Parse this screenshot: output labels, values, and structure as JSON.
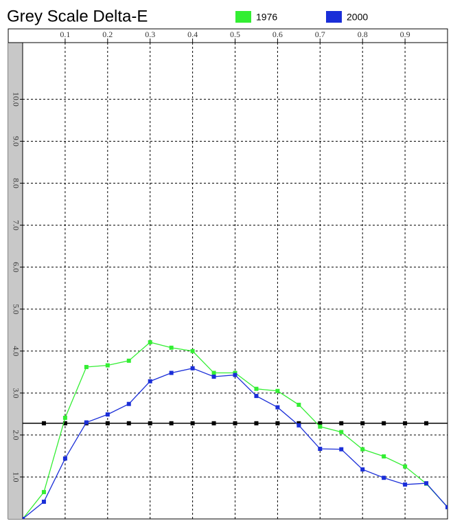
{
  "chart_data": {
    "type": "line",
    "title": "Grey Scale Delta-E",
    "x": [
      0,
      0.05,
      0.1,
      0.15,
      0.2,
      0.25,
      0.3,
      0.35,
      0.4,
      0.45,
      0.5,
      0.55,
      0.6,
      0.65,
      0.7,
      0.75,
      0.8,
      0.85,
      0.9,
      0.95,
      1.0
    ],
    "series": [
      {
        "name": "1976",
        "color": "#33ee33",
        "values": [
          0,
          0.64,
          2.41,
          3.62,
          3.66,
          3.77,
          4.21,
          4.08,
          4.0,
          3.48,
          3.48,
          3.1,
          3.05,
          2.72,
          2.2,
          2.07,
          1.66,
          1.49,
          1.25,
          0.84,
          0.28
        ]
      },
      {
        "name": "2000",
        "color": "#1a2ed8",
        "values": [
          0,
          0.41,
          1.44,
          2.3,
          2.49,
          2.74,
          3.28,
          3.48,
          3.59,
          3.39,
          3.43,
          2.93,
          2.66,
          2.23,
          1.67,
          1.66,
          1.18,
          0.98,
          0.82,
          0.85,
          0.28
        ]
      }
    ],
    "threshold": {
      "value": 2.28,
      "color": "#000000"
    },
    "xlim": [
      0,
      1.0
    ],
    "ylim": [
      0,
      11.35
    ],
    "xticks": [
      0.1,
      0.2,
      0.3,
      0.4,
      0.5,
      0.6,
      0.7,
      0.8,
      0.9
    ],
    "yticks": [
      {
        "value": 1,
        "label": "1.0"
      },
      {
        "value": 2,
        "label": "2.0"
      },
      {
        "value": 3,
        "label": "3.0"
      },
      {
        "value": 4,
        "label": "4.0"
      },
      {
        "value": 5,
        "label": "5.0"
      },
      {
        "value": 6,
        "label": "6.0"
      },
      {
        "value": 7,
        "label": "7.0"
      },
      {
        "value": 8,
        "label": "8.0"
      },
      {
        "value": 9,
        "label": "9.0"
      },
      {
        "value": 10,
        "label": "10.0"
      }
    ],
    "grid": true
  }
}
